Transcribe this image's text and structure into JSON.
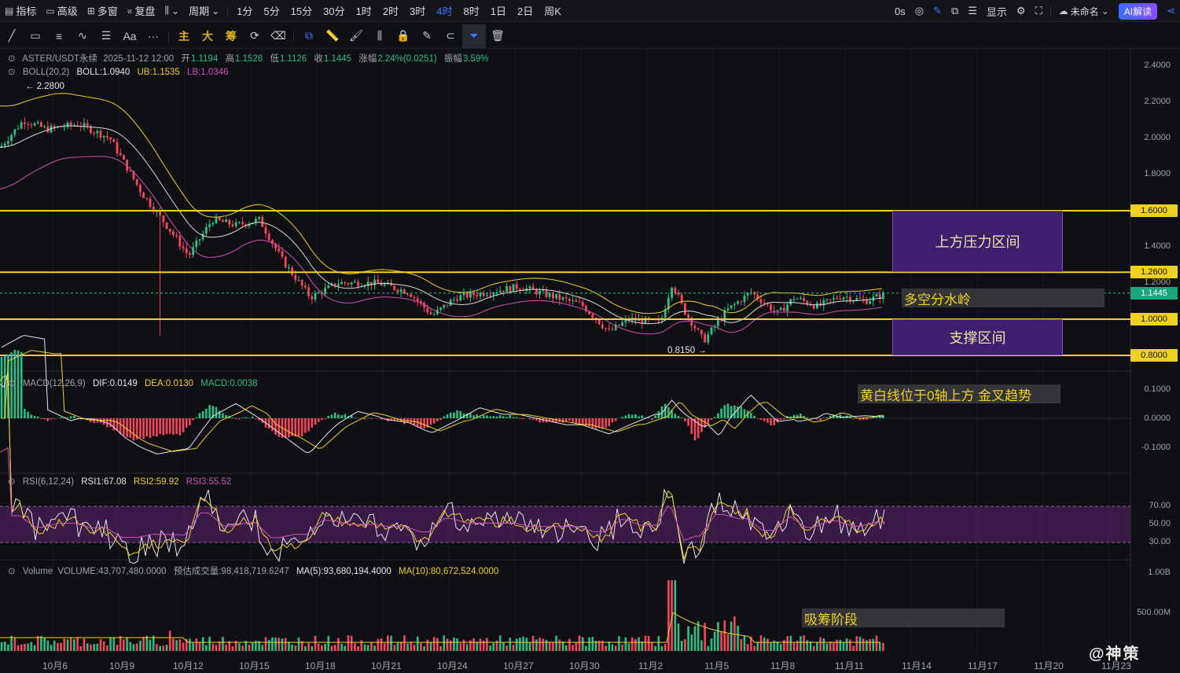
{
  "toolbar": {
    "indicators": "指标",
    "advanced": "高级",
    "multi_window": "多窗",
    "replay": "复盘",
    "cycle": "周期",
    "periods": [
      "1分",
      "5分",
      "15分",
      "30分",
      "1时",
      "2时",
      "3时",
      "4时",
      "8时",
      "1日",
      "2日",
      "周K"
    ],
    "active_period": "4时",
    "countdown": "0s",
    "display": "显示",
    "unnamed": "未命名",
    "ai": "AI解读"
  },
  "tools": {
    "main": "主",
    "big": "大",
    "chip": "筹"
  },
  "header": {
    "symbol": "ASTER/USDT永续",
    "datetime": "2025-11-12 12:00",
    "open_label": "开",
    "open": "1.1194",
    "high_label": "高",
    "high": "1.1528",
    "low_label": "低",
    "low": "1.1126",
    "close_label": "收",
    "close": "1.1445",
    "change_label": "涨幅",
    "change": "2.24%(0.0251)",
    "amp_label": "振幅",
    "amp": "3.59%"
  },
  "boll": {
    "name": "BOLL(20,2)",
    "mid": "BOLL:1.0940",
    "ub": "UB:1.1535",
    "lb": "LB:1.0346"
  },
  "macd": {
    "name": "MACD(12,26,9)",
    "dif": "DIF:0.0149",
    "dea": "DEA:0.0130",
    "macd": "MACD:0.0038"
  },
  "rsi": {
    "name": "RSI(6,12,24)",
    "rsi1": "RSI1:67.08",
    "rsi2": "RSI2:59.92",
    "rsi3": "RSI3:55.52"
  },
  "volume": {
    "name": "Volume",
    "vol": "VOLUME:43,707,480.0000",
    "est_label": "预估成交量:",
    "est": "98,418,719.6247",
    "ma5": "MA(5):93,680,194.4000",
    "ma10": "MA(10):80,672,524.0000"
  },
  "price_axis": [
    "2.4000",
    "2.2000",
    "2.0000",
    "1.8000",
    "1.4000",
    "1.2000"
  ],
  "price_tags": {
    "p160": "1.6000",
    "p126": "1.2600",
    "current": "1.1445",
    "p100": "1.0000",
    "p080": "0.8000"
  },
  "macd_axis": [
    "0.1000",
    "0.0000",
    "-0.1000"
  ],
  "rsi_axis": [
    "70.00",
    "50.00",
    "30.00"
  ],
  "vol_axis": [
    "1.00B",
    "500.00M"
  ],
  "x_axis": [
    "10月6",
    "10月9",
    "10月12",
    "10月15",
    "10月18",
    "10月21",
    "10月24",
    "10月27",
    "10月30",
    "11月2",
    "11月5",
    "11月8",
    "11月11",
    "11月14",
    "11月17",
    "11月20",
    "11月23"
  ],
  "marks": {
    "high": "← 2.2800",
    "low": "0.8150 →"
  },
  "annotations": {
    "resistance": "上方压力区间",
    "watershed": "多空分水岭",
    "support": "支撑区间",
    "macd_note": "黄白线位于0轴上方 金叉趋势",
    "volume_note": "吸筹阶段"
  },
  "watermark": "@神策",
  "colors": {
    "up": "#2ebd85",
    "down": "#f6465d",
    "yellow": "#f0d020",
    "zone": "#3e1f6e",
    "active": "#3d7cff"
  }
}
